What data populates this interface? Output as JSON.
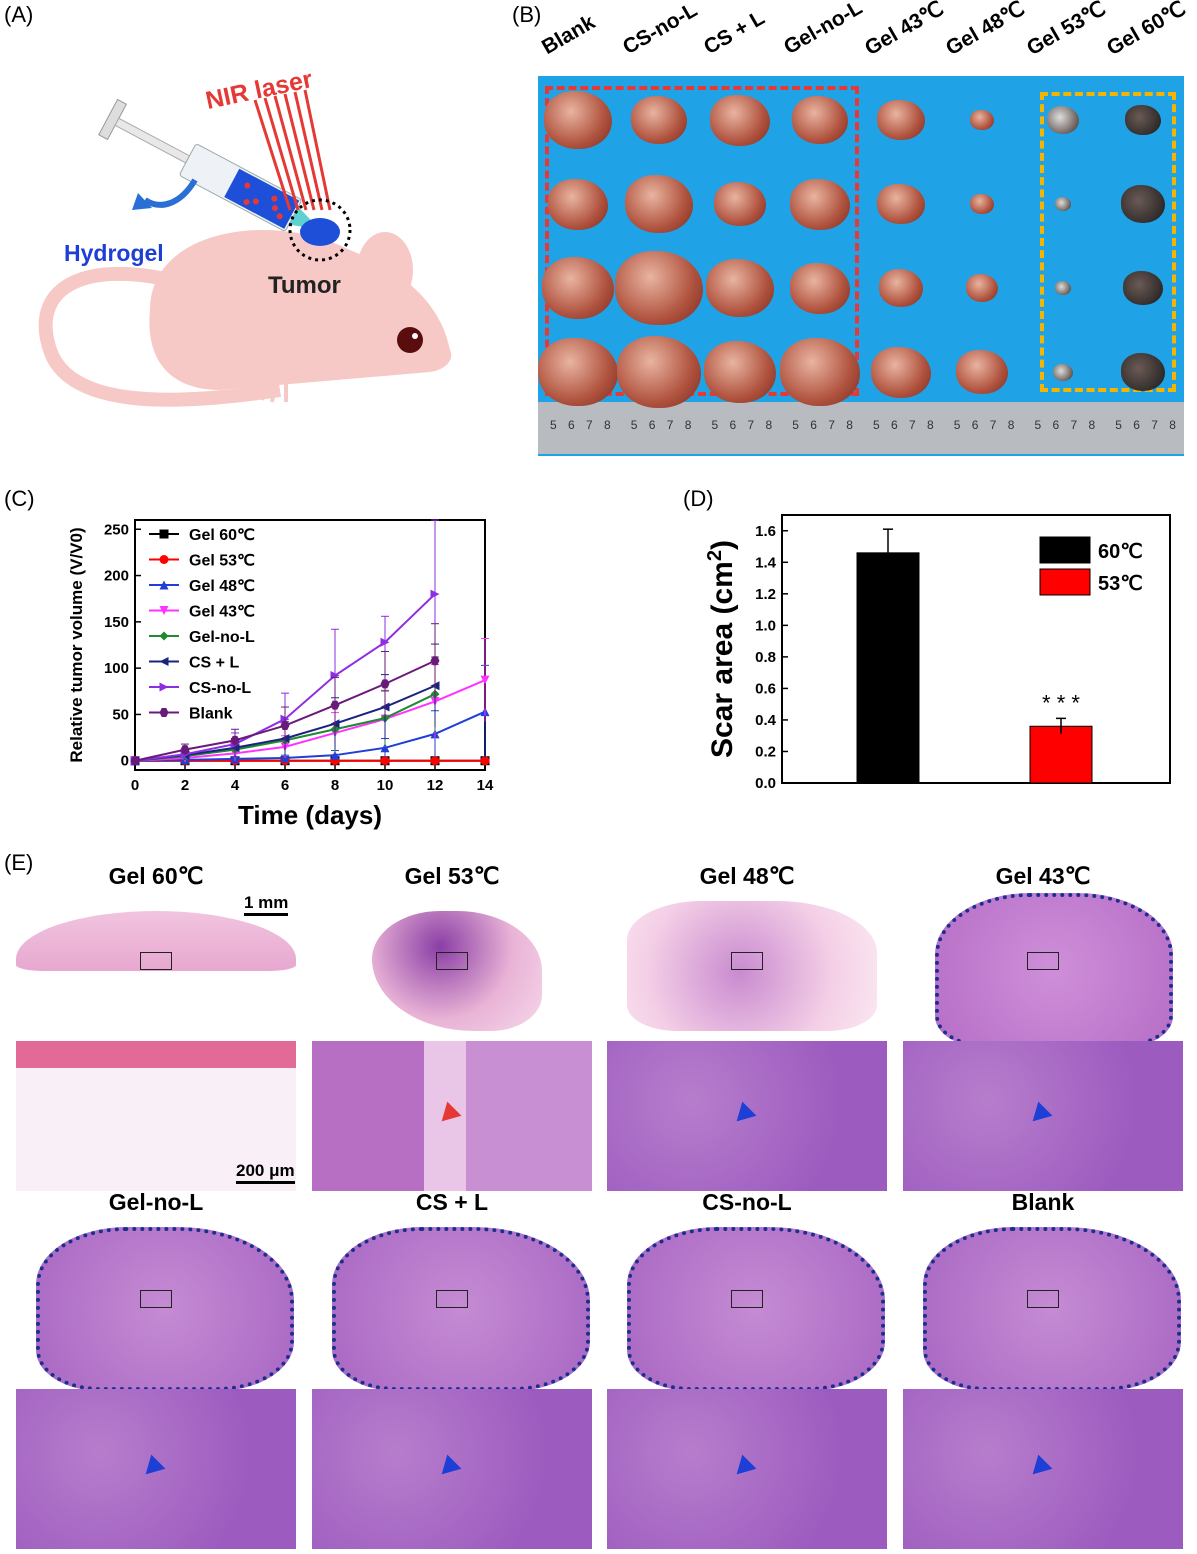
{
  "panels": {
    "a": "(A)",
    "b": "(B)",
    "c": "(C)",
    "d": "(D)",
    "e": "(E)"
  },
  "panel_a": {
    "laser": "NIR laser",
    "hydrogel": "Hydrogel",
    "tumor": "Tumor"
  },
  "panel_b": {
    "groups": [
      "Blank",
      "CS-no-L",
      "CS + L",
      "Gel-no-L",
      "Gel 43℃",
      "Gel 48℃",
      "Gel 53℃",
      "Gel 60℃"
    ],
    "ruler_ticks": [
      "5",
      "6",
      "7",
      "8"
    ],
    "colors": {
      "background": "#1fa3e6",
      "red_box": "#e53935",
      "orange_box": "#f5b400"
    }
  },
  "chart_data": [
    {
      "type": "line",
      "xlabel": "Time (days)",
      "ylabel": "Relative tumor volume (V/V0)",
      "xlim": [
        0,
        14
      ],
      "ylim": [
        -10,
        260
      ],
      "xticks": [
        0,
        2,
        4,
        6,
        8,
        10,
        12,
        14
      ],
      "yticks": [
        0,
        50,
        100,
        150,
        200,
        250
      ],
      "legend_position": "top-left",
      "series": [
        {
          "name": "Gel 60℃",
          "color": "#000000",
          "marker": "square",
          "x": [
            0,
            2,
            4,
            6,
            8,
            10,
            12,
            14
          ],
          "y": [
            0,
            0,
            0,
            0,
            0,
            0,
            0,
            0
          ]
        },
        {
          "name": "Gel 53℃",
          "color": "#ff0000",
          "marker": "circle",
          "x": [
            0,
            2,
            4,
            6,
            8,
            10,
            12,
            14
          ],
          "y": [
            0,
            0,
            0,
            0,
            0,
            0,
            0,
            0
          ]
        },
        {
          "name": "Gel 48℃",
          "color": "#1f3fd6",
          "marker": "triangle-up",
          "x": [
            0,
            2,
            4,
            6,
            8,
            10,
            12,
            14
          ],
          "y": [
            0,
            1,
            2,
            3,
            6,
            14,
            29,
            53
          ],
          "err": [
            0,
            1,
            2,
            3,
            5,
            10,
            25,
            50
          ]
        },
        {
          "name": "Gel 43℃",
          "color": "#ff33ff",
          "marker": "triangle-down",
          "x": [
            0,
            2,
            4,
            6,
            8,
            10,
            12,
            14
          ],
          "y": [
            0,
            3,
            8,
            15,
            30,
            45,
            64,
            87
          ],
          "err": [
            0,
            3,
            8,
            12,
            22,
            30,
            40,
            45
          ]
        },
        {
          "name": "Gel-no-L",
          "color": "#1f8a2e",
          "marker": "diamond",
          "x": [
            0,
            2,
            4,
            6,
            8,
            10,
            12
          ],
          "y": [
            0,
            5,
            12,
            22,
            34,
            46,
            72
          ],
          "err": [
            0,
            4,
            8,
            15,
            25,
            30,
            40
          ]
        },
        {
          "name": "CS + L",
          "color": "#1a237e",
          "marker": "triangle-left",
          "x": [
            0,
            2,
            4,
            6,
            8,
            10,
            12
          ],
          "y": [
            0,
            6,
            14,
            24,
            40,
            58,
            81
          ],
          "err": [
            0,
            5,
            10,
            18,
            28,
            35,
            45
          ]
        },
        {
          "name": "CS-no-L",
          "color": "#8e2de2",
          "marker": "triangle-right",
          "x": [
            0,
            2,
            4,
            6,
            8,
            10,
            12
          ],
          "y": [
            0,
            7,
            18,
            45,
            92,
            128,
            180
          ],
          "err": [
            0,
            5,
            12,
            28,
            50,
            28,
            87
          ]
        },
        {
          "name": "Blank",
          "color": "#6a1b7a",
          "marker": "hexagon",
          "x": [
            0,
            2,
            4,
            6,
            8,
            10,
            12
          ],
          "y": [
            0,
            12,
            22,
            38,
            60,
            83,
            108
          ],
          "err": [
            0,
            6,
            12,
            20,
            30,
            35,
            40
          ]
        }
      ]
    },
    {
      "type": "bar",
      "ylabel": "Scar area (cm2)",
      "categories": [
        "60℃",
        "53℃"
      ],
      "values": [
        1.46,
        0.36
      ],
      "err": [
        0.15,
        0.05
      ],
      "colors": [
        "#000000",
        "#ff0000"
      ],
      "ylim": [
        0.0,
        1.7
      ],
      "yticks": [
        "0.0",
        "0.2",
        "0.4",
        "0.6",
        "0.8",
        "1.0",
        "1.2",
        "1.4",
        "1.6"
      ],
      "annotation": "* * *",
      "legend_position": "top-right"
    }
  ],
  "panel_e": {
    "titles": [
      "Gel 60℃",
      "Gel 53℃",
      "Gel 48℃",
      "Gel 43℃",
      "Gel-no-L",
      "CS + L",
      "CS-no-L",
      "Blank"
    ],
    "scale_low": "1 mm",
    "scale_high": "200 μm"
  }
}
